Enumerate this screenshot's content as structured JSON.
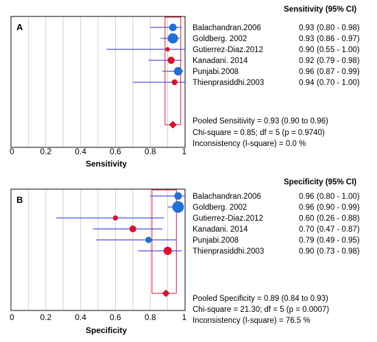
{
  "chart_data": [
    {
      "type": "forest",
      "panel_label": "A",
      "column_header": "Sensitivity (95% CI)",
      "xlabel": "Sensitivity",
      "xlim": [
        0,
        1
      ],
      "x_ticks": [
        "0",
        "0.2",
        "0.4",
        "0.6",
        "0.8",
        "1"
      ],
      "grid": true,
      "studies": [
        {
          "name": "Balachandran.2006",
          "estimate": 0.93,
          "ci": [
            0.8,
            0.98
          ],
          "estimate_label": "0.93",
          "ci_label": "(0.80 - 0.98)",
          "color": "#1f6fd6",
          "weight": 5.5
        },
        {
          "name": "Goldberg. 2002",
          "estimate": 0.93,
          "ci": [
            0.86,
            0.97
          ],
          "estimate_label": "0.93",
          "ci_label": "(0.86 - 0.97)",
          "color": "#1f6fd6",
          "weight": 7.5
        },
        {
          "name": "Gutierrez-Diaz.2012",
          "estimate": 0.9,
          "ci": [
            0.55,
            1.0
          ],
          "estimate_label": "0.90",
          "ci_label": "(0.55 - 1.00)",
          "color": "#e0102a",
          "weight": 3.2
        },
        {
          "name": "Kanadani. 2014",
          "estimate": 0.92,
          "ci": [
            0.79,
            0.98
          ],
          "estimate_label": "0.92",
          "ci_label": "(0.79 - 0.98)",
          "color": "#e0102a",
          "weight": 5.2
        },
        {
          "name": "Punjabi.2008",
          "estimate": 0.96,
          "ci": [
            0.87,
            0.99
          ],
          "estimate_label": "0.96",
          "ci_label": "(0.87 - 0.99)",
          "color": "#1f6fd6",
          "weight": 6.2
        },
        {
          "name": "Thienprasiddhi.2003",
          "estimate": 0.94,
          "ci": [
            0.7,
            1.0
          ],
          "estimate_label": "0.94",
          "ci_label": "(0.70 - 1.00)",
          "color": "#e0102a",
          "weight": 4.2
        }
      ],
      "pooled": {
        "estimate": 0.93,
        "ci": [
          0.9,
          0.96
        ],
        "box_range": [
          0.885,
          0.975
        ],
        "color": "#e0102a"
      },
      "stats": [
        "Pooled Sensitivity = 0.93 (0.90 to 0.96)",
        "Chi-square = 0.85; df =  5 (p = 0.9740)",
        "Inconsistency (I-square) = 0.0 %"
      ]
    },
    {
      "type": "forest",
      "panel_label": "B",
      "column_header": "Specificity (95% CI)",
      "xlabel": "Specificity",
      "xlim": [
        0,
        1
      ],
      "x_ticks": [
        "0",
        "0.2",
        "0.4",
        "0.6",
        "0.8",
        "1"
      ],
      "grid": true,
      "studies": [
        {
          "name": "Balachandran.2006",
          "estimate": 0.96,
          "ci": [
            0.8,
            1.0
          ],
          "estimate_label": "0.96",
          "ci_label": "(0.80 - 1.00)",
          "color": "#1f6fd6",
          "weight": 5.5
        },
        {
          "name": "Goldberg. 2002",
          "estimate": 0.96,
          "ci": [
            0.9,
            0.99
          ],
          "estimate_label": "0.96",
          "ci_label": "(0.90 - 0.99)",
          "color": "#1f6fd6",
          "weight": 8.5
        },
        {
          "name": "Gutierrez-Diaz.2012",
          "estimate": 0.6,
          "ci": [
            0.26,
            0.88
          ],
          "estimate_label": "0.60",
          "ci_label": "(0.26 - 0.88)",
          "color": "#e0102a",
          "weight": 3.8
        },
        {
          "name": "Kanadani. 2014",
          "estimate": 0.7,
          "ci": [
            0.47,
            0.87
          ],
          "estimate_label": "0.70",
          "ci_label": "(0.47 - 0.87)",
          "color": "#e0102a",
          "weight": 5.0
        },
        {
          "name": "Punjabi.2008",
          "estimate": 0.79,
          "ci": [
            0.49,
            0.95
          ],
          "estimate_label": "0.79",
          "ci_label": "(0.49 - 0.95)",
          "color": "#1f6fd6",
          "weight": 4.6
        },
        {
          "name": "Thienprasiddhi.2003",
          "estimate": 0.9,
          "ci": [
            0.73,
            0.98
          ],
          "estimate_label": "0.90",
          "ci_label": "(0.73 - 0.98)",
          "color": "#e0102a",
          "weight": 6.0
        }
      ],
      "pooled": {
        "estimate": 0.89,
        "ci": [
          0.84,
          0.93
        ],
        "box_range": [
          0.81,
          0.95
        ],
        "color": "#e0102a"
      },
      "stats": [
        "Pooled Specificity = 0.89 (0.84 to 0.93)",
        "Chi-square = 21.30; df =  5 (p = 0.0007)",
        "Inconsistency (I-square) = 76.5 %"
      ]
    }
  ]
}
